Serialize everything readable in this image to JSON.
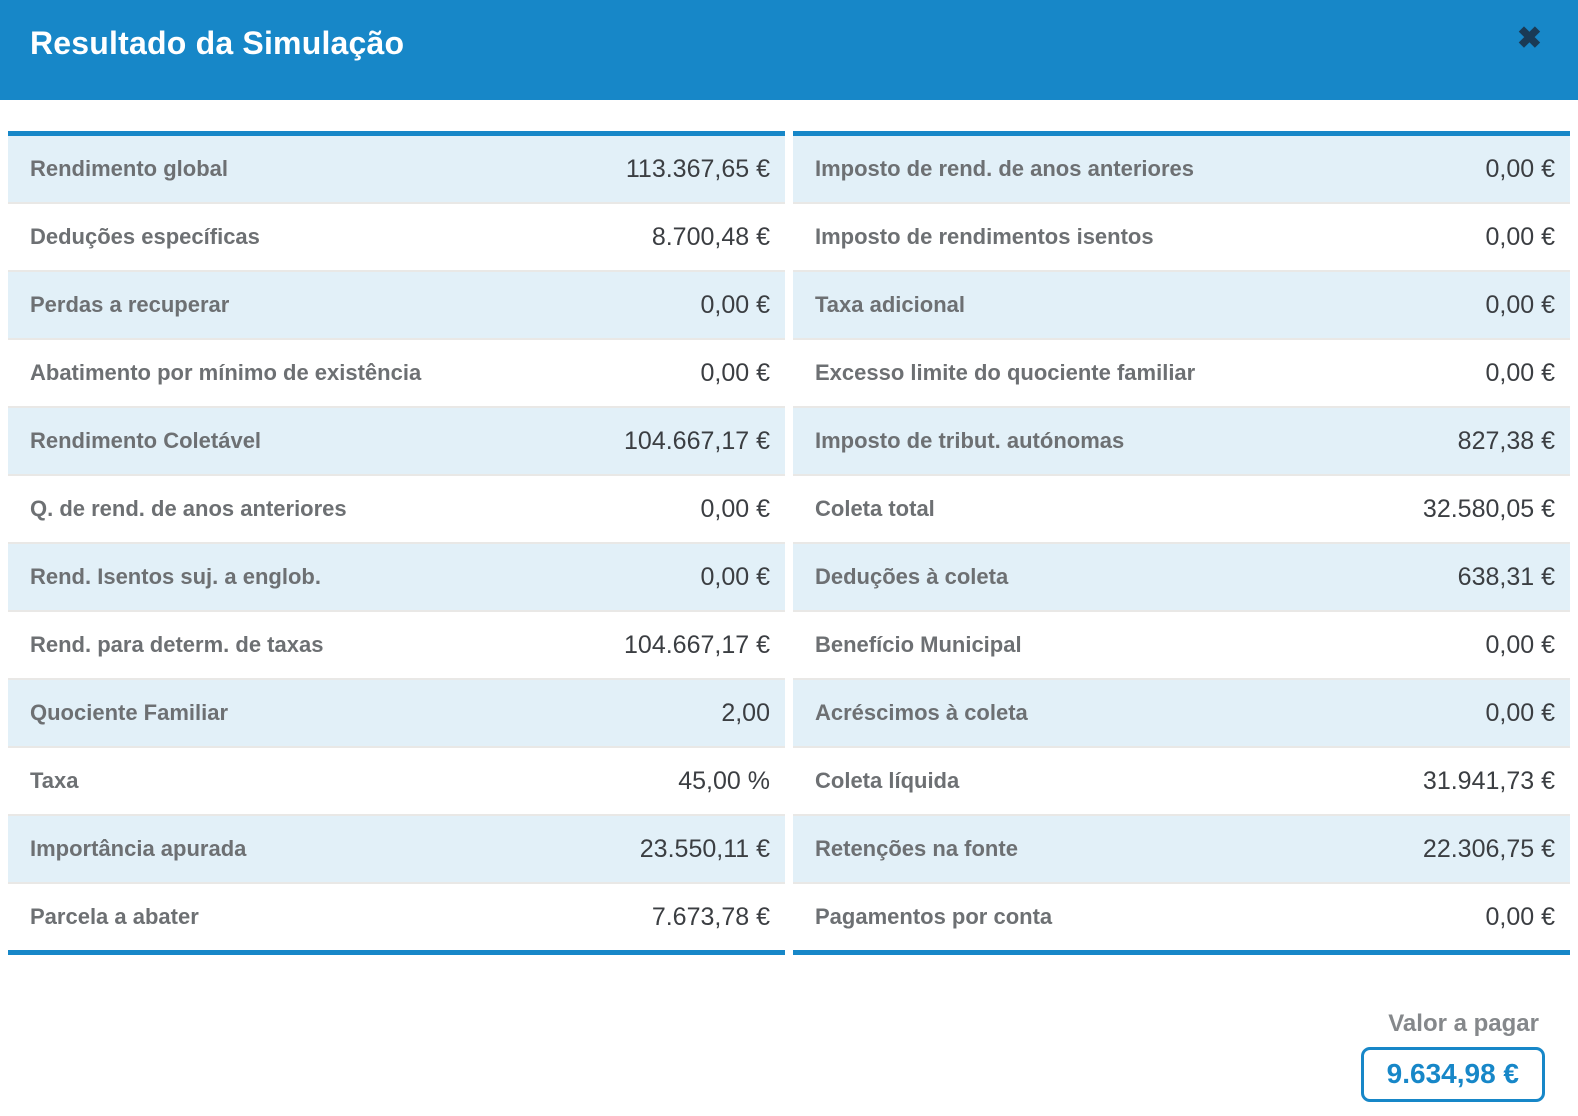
{
  "header": {
    "title": "Resultado da Simulação",
    "close_icon": "✖"
  },
  "colors": {
    "accent_blue": "#1787c8",
    "row_highlight_blue": "#e2f0f8",
    "label_gray": "#6d7073",
    "value_dark": "#3b3e42",
    "close_icon_navy": "#1a3a55"
  },
  "tables": {
    "left": {
      "rows": [
        {
          "label": "Rendimento global",
          "value": "113.367,65 €"
        },
        {
          "label": "Deduções específicas",
          "value": "8.700,48 €"
        },
        {
          "label": "Perdas a recuperar",
          "value": "0,00 €"
        },
        {
          "label": "Abatimento por mínimo de existência",
          "value": "0,00 €"
        },
        {
          "label": "Rendimento Coletável",
          "value": "104.667,17 €"
        },
        {
          "label": "Q. de rend. de anos anteriores",
          "value": "0,00 €"
        },
        {
          "label": "Rend. Isentos suj. a englob.",
          "value": "0,00 €"
        },
        {
          "label": "Rend. para determ. de taxas",
          "value": "104.667,17 €"
        },
        {
          "label": "Quociente Familiar",
          "value": "2,00"
        },
        {
          "label": "Taxa",
          "value": "45,00 %"
        },
        {
          "label": "Importância apurada",
          "value": "23.550,11 €"
        },
        {
          "label": "Parcela a abater",
          "value": "7.673,78 €"
        }
      ]
    },
    "right": {
      "rows": [
        {
          "label": "Imposto de rend. de anos anteriores",
          "value": "0,00 €"
        },
        {
          "label": "Imposto de rendimentos isentos",
          "value": "0,00 €"
        },
        {
          "label": "Taxa adicional",
          "value": "0,00 €"
        },
        {
          "label": "Excesso limite do quociente familiar",
          "value": "0,00 €"
        },
        {
          "label": "Imposto de tribut. autónomas",
          "value": "827,38 €"
        },
        {
          "label": "Coleta total",
          "value": "32.580,05 €"
        },
        {
          "label": "Deduções à coleta",
          "value": "638,31 €"
        },
        {
          "label": "Benefício Municipal",
          "value": "0,00 €"
        },
        {
          "label": "Acréscimos à coleta",
          "value": "0,00 €"
        },
        {
          "label": "Coleta líquida",
          "value": "31.941,73 €"
        },
        {
          "label": "Retenções na fonte",
          "value": "22.306,75 €"
        },
        {
          "label": "Pagamentos por conta",
          "value": "0,00 €"
        }
      ]
    }
  },
  "footer": {
    "label": "Valor a pagar",
    "value": "9.634,98 €"
  }
}
